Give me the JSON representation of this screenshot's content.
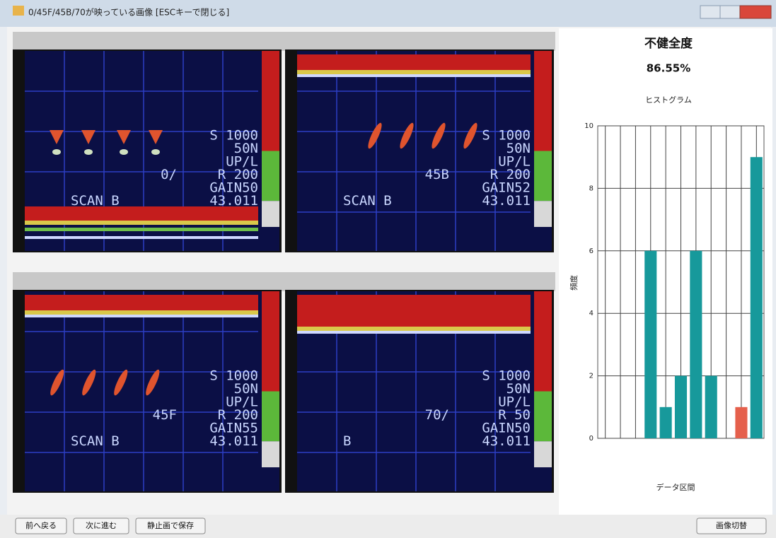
{
  "window_title": "0/45F/45B/70が映っている画像 [ESCキーで閉じる]",
  "panels": [
    {
      "lines": [
        "S 1000",
        "50N",
        "UP/L",
        "R 200",
        "GAIN50",
        "43.011"
      ],
      "mode": "0/",
      "scan": "SCAN B"
    },
    {
      "lines": [
        "S 1000",
        "50N",
        "UP/L",
        "R 200",
        "GAIN52",
        "43.011"
      ],
      "mode": "45B",
      "scan": "SCAN B"
    },
    {
      "lines": [
        "S 1000",
        "50N",
        "UP/L",
        "R 200",
        "GAIN55",
        "43.011"
      ],
      "mode": "45F",
      "scan": "SCAN B"
    },
    {
      "lines": [
        "S 1000",
        "50N",
        "UP/L",
        "R 50",
        "GAIN50",
        "43.011"
      ],
      "mode": "70/",
      "scan": "B"
    }
  ],
  "buttons": [
    "前へ戻る",
    "次に進む",
    "静止画で保存"
  ],
  "switch_button": "画像切替",
  "chart_data": {
    "type": "bar",
    "title": "不健全度",
    "subtitle": "86.55%",
    "caption": "ヒストグラム",
    "y_label": "頻度",
    "x_label": "データ区間",
    "categories": [
      null,
      null,
      null,
      null,
      null,
      null,
      null,
      null,
      null,
      null,
      null
    ],
    "values": [
      0,
      0,
      0,
      6,
      1,
      2,
      6,
      2,
      0,
      1,
      9
    ],
    "colors": [
      "#17999b",
      "#17999b",
      "#17999b",
      "#17999b",
      "#17999b",
      "#17999b",
      "#17999b",
      "#17999b",
      "#17999b",
      "#e5604c",
      "#17999b"
    ],
    "ylim": [
      0,
      10
    ],
    "yticks": [
      0,
      2,
      4,
      6,
      8,
      10
    ],
    "grid": true
  }
}
